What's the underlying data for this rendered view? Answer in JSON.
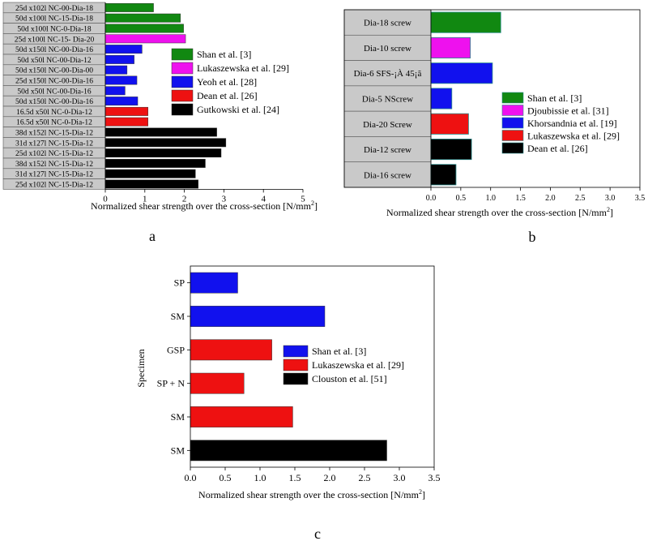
{
  "chart_data": [
    {
      "type": "bar",
      "panel_label": "a",
      "orientation": "horizontal",
      "xlabel": "Normalized shear strength over the cross-section [N/mm",
      "xlabel_sup": "2",
      "xlabel_end": "]",
      "xlim": [
        0,
        5
      ],
      "ticks": [
        "0",
        "1",
        "2",
        "3",
        "4",
        "5"
      ],
      "legend_position": "right",
      "categories": [
        "25d x102l NC-00-Dia-18",
        "50d x100l NC-15-Dia-18",
        "50d x100l NC-0-Dia-18",
        "25d x100l NC-15- Dia-20",
        "50d x150l NC-00-Dia-16",
        "50d x50l NC-00-Dia-12",
        "50d x150l NC-00-Dia-00",
        "25d x150l NC-00-Dia-16",
        "50d x50l NC-00-Dia-16",
        "50d x150l NC-00-Dia-16",
        "16.5d x50l NC-0-Dia-12",
        "16.5d x50l NC-0-Dia-12",
        "38d x152l NC-15-Dia-12",
        "31d x127l NC-15-Dia-12",
        "25d x102l NC-15-Dia-12",
        "38d x152l NC-15-Dia-12",
        "31d x127l NC-15-Dia-12",
        "25d x102l NC-15-Dia-12"
      ],
      "values": [
        1.22,
        1.9,
        1.98,
        2.03,
        0.93,
        0.73,
        0.55,
        0.8,
        0.5,
        0.82,
        1.08,
        1.08,
        2.82,
        3.05,
        2.93,
        2.53,
        2.28,
        2.35
      ],
      "bar_series": [
        0,
        0,
        0,
        1,
        2,
        2,
        2,
        2,
        2,
        2,
        3,
        3,
        4,
        4,
        4,
        4,
        4,
        4
      ],
      "series": [
        {
          "name": "Shan et al. [3]",
          "color": "#118811"
        },
        {
          "name": "Lukaszewska et al. [29]",
          "color": "#ee11ee"
        },
        {
          "name": "Yeoh et al. [28]",
          "color": "#1111ee"
        },
        {
          "name": "Dean et al. [26]",
          "color": "#ee1111"
        },
        {
          "name": "Gutkowski et al. [24]",
          "color": "#000000"
        }
      ]
    },
    {
      "type": "bar",
      "panel_label": "b",
      "orientation": "horizontal",
      "xlabel": "Normalized shear strength over the cross-section [N/mm",
      "xlabel_sup": "2",
      "xlabel_end": "]",
      "xlim": [
        0,
        3.5
      ],
      "ticks": [
        "0.0",
        "0.5",
        "1.0",
        "1.5",
        "2.0",
        "2.5",
        "3.0",
        "3.5"
      ],
      "legend_position": "right",
      "categories": [
        "Dia-18 screw",
        "Dia-10 screw",
        "Dia-6 SFS-¡À 45¡ã",
        "Dia-5 NScrew",
        "Dia-20 Screw",
        "Dia-12 screw",
        "Dia-16 screw"
      ],
      "values": [
        1.17,
        0.66,
        1.03,
        0.35,
        0.63,
        0.68,
        0.42
      ],
      "bar_series": [
        0,
        1,
        2,
        2,
        3,
        4,
        4
      ],
      "series": [
        {
          "name": "Shan et al. [3]",
          "color": "#118811"
        },
        {
          "name": "Djoubissie et al. [31]",
          "color": "#ee11ee"
        },
        {
          "name": "Khorsandnia et al. [19]",
          "color": "#1111ee"
        },
        {
          "name": "Lukaszewska et al. [29]",
          "color": "#ee1111"
        },
        {
          "name": "Dean et al. [26]",
          "color": "#000000"
        }
      ]
    },
    {
      "type": "bar",
      "panel_label": "c",
      "orientation": "horizontal",
      "xlabel": "Normalized shear strength over the cross-section [N/mm",
      "xlabel_sup": "2",
      "xlabel_end": "]",
      "ylabel": "Specimen",
      "xlim": [
        0,
        3.5
      ],
      "ticks": [
        "0.0",
        "0.5",
        "1.0",
        "1.5",
        "2.0",
        "2.5",
        "3.0",
        "3.5"
      ],
      "legend_position": "right",
      "categories": [
        "SP",
        "SM",
        "GSP",
        "SP + N",
        "SM",
        "SM"
      ],
      "values": [
        0.68,
        1.93,
        1.17,
        0.77,
        1.47,
        2.82
      ],
      "bar_series": [
        0,
        0,
        1,
        1,
        1,
        2
      ],
      "series": [
        {
          "name": "Shan et al. [3]",
          "color": "#1111ee"
        },
        {
          "name": "Lukaszewska et al. [29]",
          "color": "#ee1111"
        },
        {
          "name": "Clouston et al. [51]",
          "color": "#000000"
        }
      ]
    }
  ]
}
